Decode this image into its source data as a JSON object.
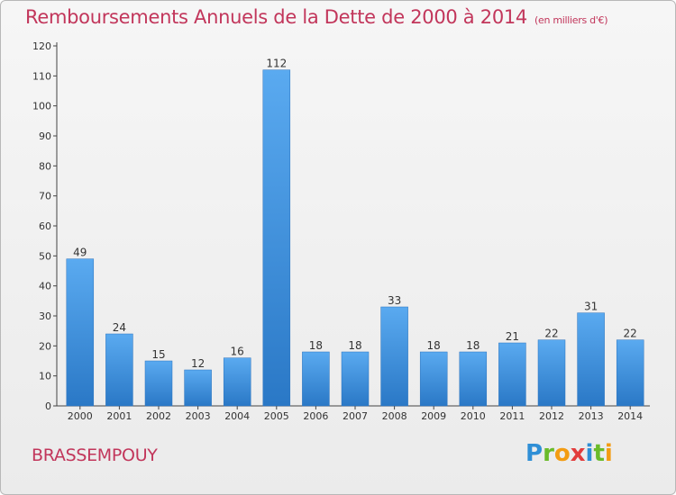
{
  "chart_data": {
    "type": "bar",
    "title": "Remboursements Annuels de la Dette de 2000 à 2014",
    "subtitle": "(en milliers d'€)",
    "xlabel": "",
    "ylabel": "",
    "categories": [
      "2000",
      "2001",
      "2002",
      "2003",
      "2004",
      "2005",
      "2006",
      "2007",
      "2008",
      "2009",
      "2010",
      "2011",
      "2012",
      "2013",
      "2014"
    ],
    "values": [
      49,
      24,
      15,
      12,
      16,
      112,
      18,
      18,
      33,
      18,
      18,
      21,
      22,
      31,
      22
    ],
    "ylim": [
      0,
      120
    ],
    "yticks": [
      0,
      10,
      20,
      30,
      40,
      50,
      60,
      70,
      80,
      90,
      100,
      110,
      120
    ],
    "grid": false,
    "bar_color": "#3a8bd8"
  },
  "footer": {
    "commune": "BRASSEMPOUY",
    "logo_letters": [
      {
        "ch": "P",
        "color": "#2f8fd6"
      },
      {
        "ch": "r",
        "color": "#6abb2a"
      },
      {
        "ch": "o",
        "color": "#f39c12"
      },
      {
        "ch": "x",
        "color": "#e23c3c"
      },
      {
        "ch": "i",
        "color": "#2f8fd6"
      },
      {
        "ch": "t",
        "color": "#6abb2a"
      },
      {
        "ch": "i",
        "color": "#f39c12"
      }
    ]
  }
}
